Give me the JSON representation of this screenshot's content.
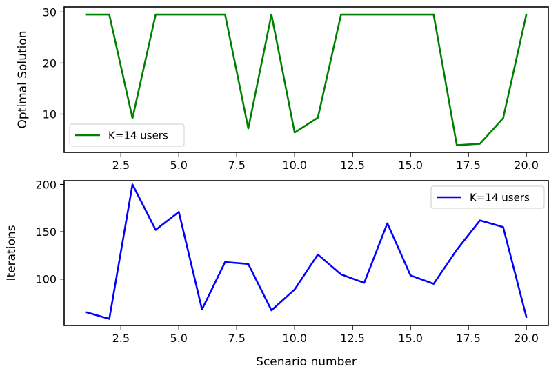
{
  "chart_data": [
    {
      "type": "line",
      "title": "",
      "xlabel": "",
      "ylabel": "Optimal Solution",
      "xlim": [
        0.05,
        20.95
      ],
      "ylim": [
        2.5,
        31
      ],
      "xticks": [
        2.5,
        5.0,
        7.5,
        10.0,
        12.5,
        15.0,
        17.5,
        20.0
      ],
      "xtick_labels": [
        "2.5",
        "5.0",
        "7.5",
        "10.0",
        "12.5",
        "15.0",
        "17.5",
        "20.0"
      ],
      "yticks": [
        10,
        20,
        30
      ],
      "ytick_labels": [
        "10",
        "20",
        "30"
      ],
      "grid": false,
      "legend_position": "lower-left",
      "series": [
        {
          "name": "K=14 users",
          "color": "#007f00",
          "x": [
            1,
            2,
            3,
            4,
            5,
            6,
            7,
            8,
            9,
            10,
            11,
            12,
            13,
            14,
            15,
            16,
            17,
            18,
            19,
            20
          ],
          "values": [
            29.5,
            29.5,
            9.2,
            29.5,
            29.5,
            29.5,
            29.5,
            7.2,
            29.5,
            6.4,
            9.3,
            29.5,
            29.5,
            29.5,
            29.5,
            29.5,
            3.9,
            4.2,
            9.2,
            29.5
          ]
        }
      ]
    },
    {
      "type": "line",
      "title": "",
      "xlabel": "Scenario number",
      "ylabel": "Iterations",
      "xlim": [
        0.05,
        20.95
      ],
      "ylim": [
        51,
        204
      ],
      "xticks": [
        2.5,
        5.0,
        7.5,
        10.0,
        12.5,
        15.0,
        17.5,
        20.0
      ],
      "xtick_labels": [
        "2.5",
        "5.0",
        "7.5",
        "10.0",
        "12.5",
        "15.0",
        "17.5",
        "20.0"
      ],
      "yticks": [
        100,
        150,
        200
      ],
      "ytick_labels": [
        "100",
        "150",
        "200"
      ],
      "grid": false,
      "legend_position": "upper-right",
      "series": [
        {
          "name": "K=14 users",
          "color": "#0000ff",
          "x": [
            1,
            2,
            3,
            4,
            5,
            6,
            7,
            8,
            9,
            10,
            11,
            12,
            13,
            14,
            15,
            16,
            17,
            18,
            19,
            20
          ],
          "values": [
            65,
            58,
            200,
            152,
            171,
            68,
            118,
            116,
            67,
            89,
            126,
            105,
            96,
            159,
            104,
            95,
            131,
            162,
            155,
            60
          ]
        }
      ]
    }
  ]
}
